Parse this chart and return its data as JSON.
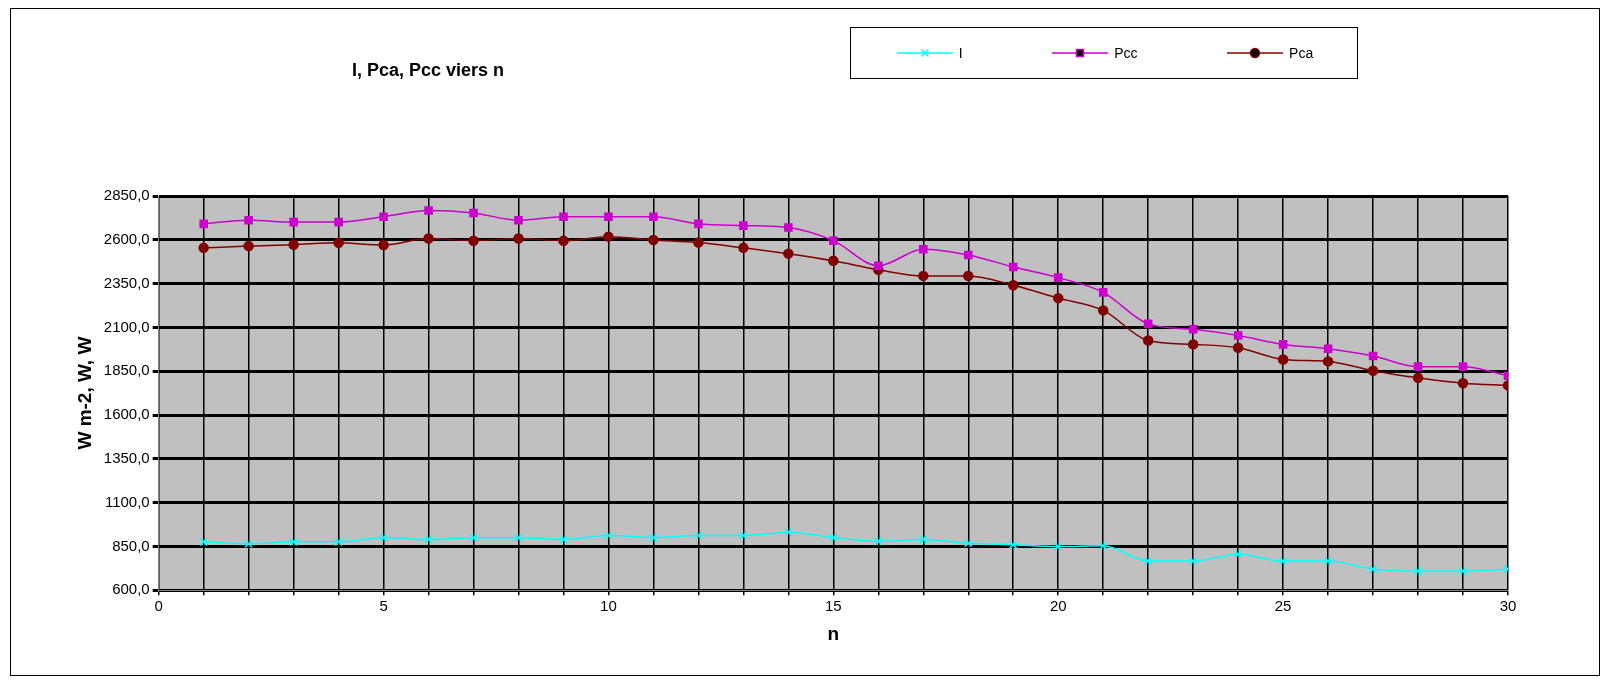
{
  "chart_data": {
    "type": "line",
    "title": "I, Pca, Pcc viers n",
    "xlabel": "n",
    "ylabel": "W m-2, W, W",
    "x": [
      1,
      2,
      3,
      4,
      5,
      6,
      7,
      8,
      9,
      10,
      11,
      12,
      13,
      14,
      15,
      16,
      17,
      18,
      19,
      20,
      21,
      22,
      23,
      24,
      25,
      26,
      27,
      28,
      29,
      30
    ],
    "series": [
      {
        "name": "I",
        "color": "#00ffff",
        "marker": "cross",
        "values": [
          876,
          865,
          876,
          876,
          900,
          890,
          900,
          900,
          890,
          912,
          900,
          912,
          912,
          931,
          900,
          879,
          890,
          868,
          859,
          849,
          853,
          766,
          766,
          805,
          766,
          766,
          720,
          709,
          709,
          720
        ]
      },
      {
        "name": "Pcc",
        "color": "#cc00cc",
        "marker": "square",
        "values": [
          2691,
          2712,
          2701,
          2701,
          2732,
          2767,
          2753,
          2712,
          2732,
          2732,
          2732,
          2691,
          2681,
          2670,
          2595,
          2452,
          2546,
          2513,
          2445,
          2384,
          2300,
          2120,
          2089,
          2054,
          2003,
          1978,
          1937,
          1876,
          1876,
          1824
        ]
      },
      {
        "name": "Pca",
        "color": "#800000",
        "marker": "circle",
        "values": [
          2554,
          2564,
          2572,
          2583,
          2570,
          2607,
          2595,
          2607,
          2595,
          2618,
          2599,
          2584,
          2554,
          2521,
          2480,
          2429,
          2394,
          2394,
          2341,
          2267,
          2197,
          2025,
          2003,
          1984,
          1917,
          1906,
          1853,
          1812,
          1781,
          1769
        ]
      }
    ],
    "xlim": [
      0,
      30
    ],
    "xticks": [
      0,
      {
        "value": 1,
        "label": null
      },
      {
        "value": 2,
        "label": null
      },
      {
        "value": 3,
        "label": null
      },
      {
        "value": 4,
        "label": null
      },
      5,
      {
        "value": 6,
        "label": null
      },
      {
        "value": 7,
        "label": null
      },
      {
        "value": 8,
        "label": null
      },
      {
        "value": 9,
        "label": null
      },
      10,
      {
        "value": 11,
        "label": null
      },
      {
        "value": 12,
        "label": null
      },
      {
        "value": 13,
        "label": null
      },
      {
        "value": 14,
        "label": null
      },
      15,
      {
        "value": 16,
        "label": null
      },
      {
        "value": 17,
        "label": null
      },
      {
        "value": 18,
        "label": null
      },
      {
        "value": 19,
        "label": null
      },
      20,
      {
        "value": 21,
        "label": null
      },
      {
        "value": 22,
        "label": null
      },
      {
        "value": 23,
        "label": null
      },
      {
        "value": 24,
        "label": null
      },
      25,
      {
        "value": 26,
        "label": null
      },
      {
        "value": 27,
        "label": null
      },
      {
        "value": 28,
        "label": null
      },
      {
        "value": 29,
        "label": null
      },
      30
    ],
    "ylim": [
      600,
      2850
    ],
    "yticks": [
      {
        "value": 600,
        "label": "600,0"
      },
      {
        "value": 850,
        "label": "850,0"
      },
      {
        "value": 1100,
        "label": "1100,0"
      },
      {
        "value": 1350,
        "label": "1350,0"
      },
      {
        "value": 1600,
        "label": "1600,0"
      },
      {
        "value": 1850,
        "label": "1850,0"
      },
      {
        "value": 2100,
        "label": "2100,0"
      },
      {
        "value": 2350,
        "label": "2350,0"
      },
      {
        "value": 2600,
        "label": "2600,0"
      },
      {
        "value": 2850,
        "label": "2850,0"
      }
    ],
    "grid": true,
    "legend": "top right",
    "line_style": "solid"
  }
}
